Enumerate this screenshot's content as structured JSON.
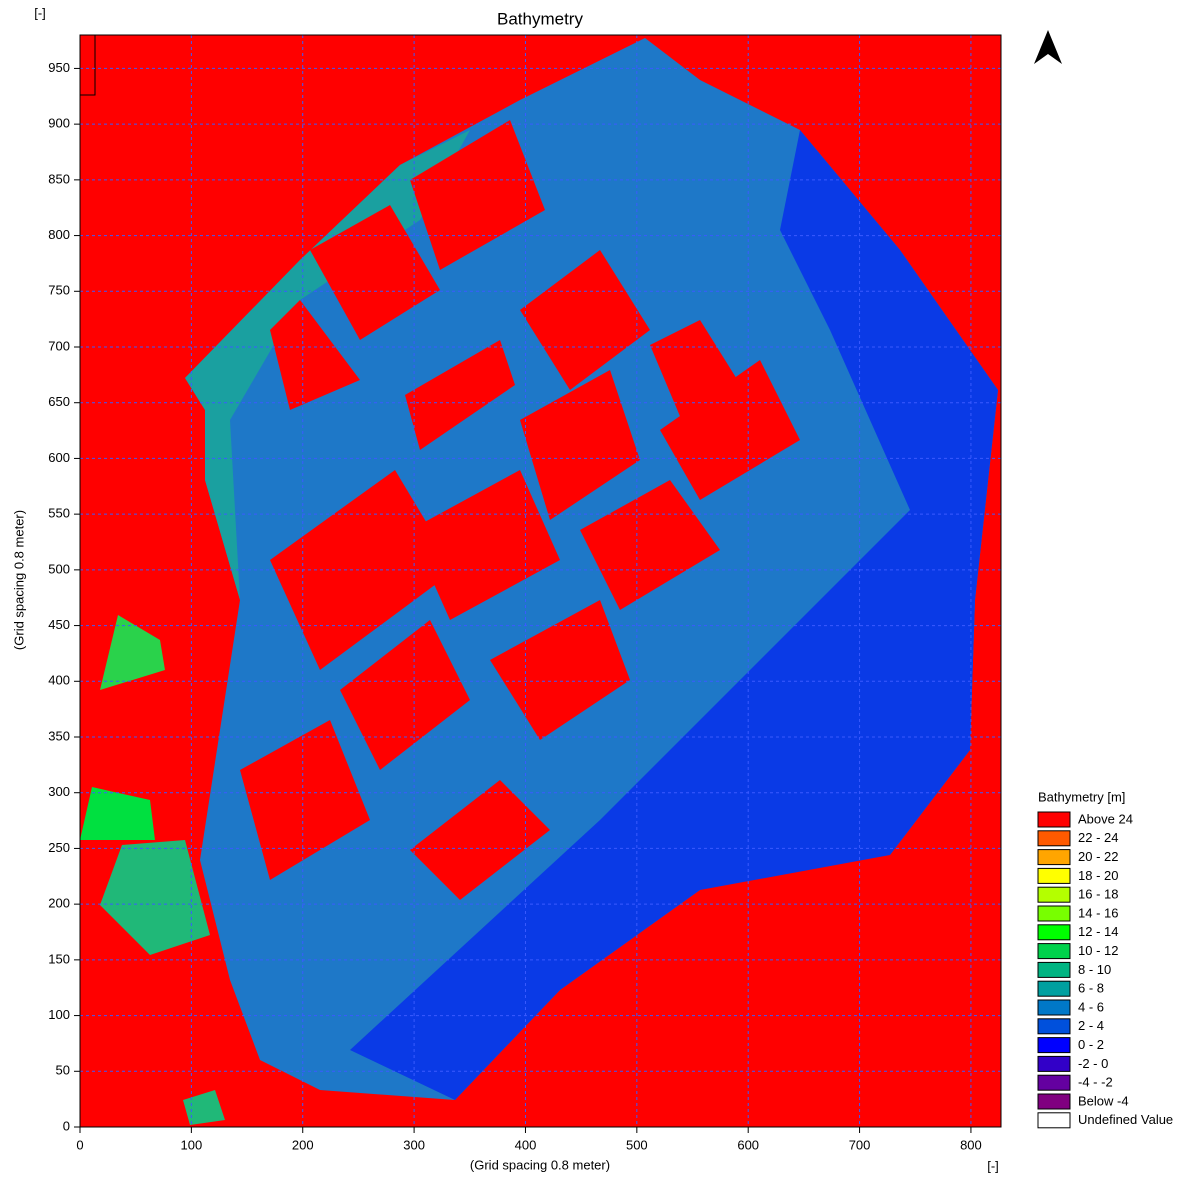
{
  "chart_data": {
    "type": "heatmap",
    "title": "Bathymetry",
    "x_label": "(Grid spacing 0.8 meter)",
    "y_label": "(Grid spacing 0.8 meter)",
    "x_unit": "[-]",
    "y_unit": "[-]",
    "xlim": [
      0,
      827
    ],
    "ylim": [
      0,
      980
    ],
    "xticks": [
      0,
      100,
      200,
      300,
      400,
      500,
      600,
      700,
      800
    ],
    "yticks": [
      0,
      50,
      100,
      150,
      200,
      250,
      300,
      350,
      400,
      450,
      500,
      550,
      600,
      650,
      700,
      750,
      800,
      850,
      900,
      950
    ],
    "grid": true,
    "legend": {
      "title": "Bathymetry [m]",
      "items": [
        {
          "label": "Above 24",
          "color": "#ff0000"
        },
        {
          "label": "22 - 24",
          "color": "#ff5a00"
        },
        {
          "label": "20 - 22",
          "color": "#ffa500"
        },
        {
          "label": "18 - 20",
          "color": "#ffff00"
        },
        {
          "label": "16 - 18",
          "color": "#b4ff00"
        },
        {
          "label": "14 - 16",
          "color": "#78ff00"
        },
        {
          "label": "12 - 14",
          "color": "#00ff00"
        },
        {
          "label": "10 - 12",
          "color": "#00d24b"
        },
        {
          "label": "8 - 10",
          "color": "#00b482"
        },
        {
          "label": "6 -  8",
          "color": "#00a0a0"
        },
        {
          "label": "4 -  6",
          "color": "#0078c8"
        },
        {
          "label": "2 -  4",
          "color": "#0050dc"
        },
        {
          "label": "0 -  2",
          "color": "#0000ff"
        },
        {
          "label": "-2 -  0",
          "color": "#3200c8"
        },
        {
          "label": "-4 - -2",
          "color": "#6400a0"
        },
        {
          "label": "Below  -4",
          "color": "#800080"
        },
        {
          "label": "Undefined Value",
          "color": "#ffffff"
        }
      ]
    }
  }
}
